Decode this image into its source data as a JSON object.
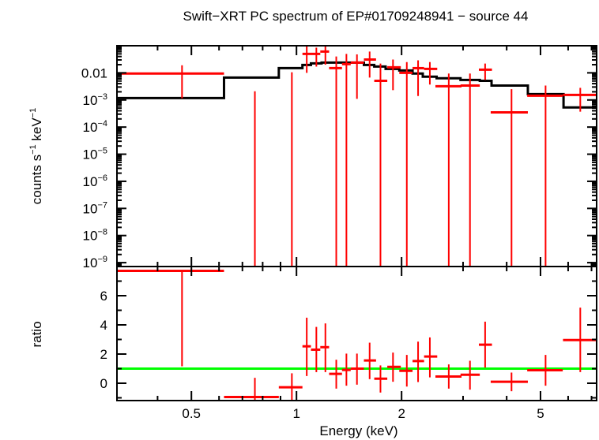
{
  "chart_data": [
    {
      "type": "scatter",
      "title": "Swift−XRT PC spectrum of EP#01709248941 − source 44",
      "xlabel": "",
      "ylabel_parts": {
        "a": "counts s",
        "a_exp": "−1",
        "b": " keV",
        "b_exp": "−1"
      },
      "xscale": "log",
      "yscale": "log",
      "xlim": [
        0.306,
        7.24
      ],
      "ylim": [
        7.2e-10,
        0.1
      ],
      "grid": false,
      "yticks": [
        {
          "value": 0.01,
          "label": "0.01"
        },
        {
          "value": 0.001,
          "base": "10",
          "exp": "−3"
        },
        {
          "value": 0.0001,
          "base": "10",
          "exp": "−4"
        },
        {
          "value": 1e-05,
          "base": "10",
          "exp": "−5"
        },
        {
          "value": 1e-06,
          "base": "10",
          "exp": "−6"
        },
        {
          "value": 1e-07,
          "base": "10",
          "exp": "−7"
        },
        {
          "value": 1e-08,
          "base": "10",
          "exp": "−8"
        },
        {
          "value": 1e-09,
          "base": "10",
          "exp": "−9"
        }
      ],
      "data_color": "#ff0000",
      "model_color": "#000000",
      "data": [
        {
          "xlo": 0.3,
          "xhi": 0.62,
          "x": 0.47,
          "y": 0.0094,
          "ylo": 0.00115,
          "yhi": 0.019
        },
        {
          "xlo": 0.62,
          "xhi": 0.89,
          "x": 0.76,
          "y": -0.0064,
          "ylo": null,
          "yhi": 0.0021
        },
        {
          "xlo": 0.89,
          "xhi": 1.04,
          "x": 0.97,
          "y": -0.0042,
          "ylo": null,
          "yhi": 0.0105
        },
        {
          "xlo": 1.04,
          "xhi": 1.1,
          "x": 1.07,
          "y": 0.05,
          "ylo": 0.01,
          "yhi": 0.1
        },
        {
          "xlo": 1.1,
          "xhi": 1.17,
          "x": 1.14,
          "y": 0.05,
          "ylo": 0.017,
          "yhi": 0.085
        },
        {
          "xlo": 1.17,
          "xhi": 1.24,
          "x": 1.21,
          "y": 0.061,
          "ylo": 0.02,
          "yhi": 0.1
        },
        {
          "xlo": 1.24,
          "xhi": 1.35,
          "x": 1.3,
          "y": 0.0149,
          "ylo": null,
          "yhi": 0.04
        },
        {
          "xlo": 1.35,
          "xhi": 1.43,
          "x": 1.39,
          "y": 0.021,
          "ylo": null,
          "yhi": 0.05
        },
        {
          "xlo": 1.43,
          "xhi": 1.56,
          "x": 1.49,
          "y": 0.024,
          "ylo": 0.0011,
          "yhi": 0.048
        },
        {
          "xlo": 1.56,
          "xhi": 1.69,
          "x": 1.62,
          "y": 0.031,
          "ylo": 0.0067,
          "yhi": 0.061
        },
        {
          "xlo": 1.67,
          "xhi": 1.82,
          "x": 1.74,
          "y": 0.0051,
          "ylo": null,
          "yhi": 0.022
        },
        {
          "xlo": 1.82,
          "xhi": 1.99,
          "x": 1.89,
          "y": 0.016,
          "ylo": 0.0023,
          "yhi": 0.031
        },
        {
          "xlo": 1.97,
          "xhi": 2.15,
          "x": 2.07,
          "y": 0.01,
          "ylo": null,
          "yhi": 0.025
        },
        {
          "xlo": 2.15,
          "xhi": 2.32,
          "x": 2.23,
          "y": 0.0149,
          "ylo": 0.0014,
          "yhi": 0.029
        },
        {
          "xlo": 2.32,
          "xhi": 2.53,
          "x": 2.41,
          "y": 0.014,
          "ylo": 0.0037,
          "yhi": 0.025
        },
        {
          "xlo": 2.5,
          "xhi": 2.97,
          "x": 2.73,
          "y": 0.0032,
          "ylo": null,
          "yhi": 0.0094
        },
        {
          "xlo": 2.95,
          "xhi": 3.35,
          "x": 3.14,
          "y": 0.0034,
          "ylo": null,
          "yhi": 0.0094
        },
        {
          "xlo": 3.33,
          "xhi": 3.63,
          "x": 3.47,
          "y": 0.0131,
          "ylo": 0.0055,
          "yhi": 0.022
        },
        {
          "xlo": 3.6,
          "xhi": 4.6,
          "x": 4.13,
          "y": 0.00035,
          "ylo": null,
          "yhi": 0.0025
        },
        {
          "xlo": 4.58,
          "xhi": 5.79,
          "x": 5.17,
          "y": 0.00143,
          "ylo": null,
          "yhi": 0.0034
        },
        {
          "xlo": 5.8,
          "xhi": 7.3,
          "x": 6.5,
          "y": 0.00154,
          "ylo": 0.00037,
          "yhi": 0.0028
        }
      ],
      "model": [
        {
          "xlo": 0.3,
          "xhi": 0.62,
          "y": 0.00117
        },
        {
          "xlo": 0.62,
          "xhi": 0.89,
          "y": 0.0067
        },
        {
          "xlo": 0.89,
          "xhi": 1.04,
          "y": 0.0149
        },
        {
          "xlo": 1.04,
          "xhi": 1.1,
          "y": 0.0195
        },
        {
          "xlo": 1.1,
          "xhi": 1.18,
          "y": 0.0223
        },
        {
          "xlo": 1.18,
          "xhi": 1.56,
          "y": 0.0239
        },
        {
          "xlo": 1.56,
          "xhi": 1.67,
          "y": 0.0195
        },
        {
          "xlo": 1.67,
          "xhi": 1.8,
          "y": 0.0171
        },
        {
          "xlo": 1.8,
          "xhi": 1.97,
          "y": 0.014
        },
        {
          "xlo": 1.97,
          "xhi": 2.15,
          "y": 0.0122
        },
        {
          "xlo": 2.15,
          "xhi": 2.3,
          "y": 0.0094
        },
        {
          "xlo": 2.3,
          "xhi": 2.52,
          "y": 0.0072
        },
        {
          "xlo": 2.52,
          "xhi": 2.95,
          "y": 0.0063
        },
        {
          "xlo": 2.95,
          "xhi": 3.35,
          "y": 0.0055
        },
        {
          "xlo": 3.35,
          "xhi": 3.62,
          "y": 0.0051
        },
        {
          "xlo": 3.62,
          "xhi": 4.6,
          "y": 0.0034
        },
        {
          "xlo": 4.6,
          "xhi": 5.82,
          "y": 0.00164
        },
        {
          "xlo": 5.82,
          "xhi": 7.24,
          "y": 0.00053
        }
      ]
    },
    {
      "type": "scatter",
      "xlabel": "Energy (keV)",
      "ylabel": "ratio",
      "xscale": "log",
      "xlim": [
        0.306,
        7.24
      ],
      "ylim": [
        -1.19,
        8.0
      ],
      "grid": false,
      "xticks": [
        {
          "value": 0.5,
          "label": "0.5"
        },
        {
          "value": 1,
          "label": "1"
        },
        {
          "value": 2,
          "label": "2"
        },
        {
          "value": 5,
          "label": "5"
        }
      ],
      "yticks": [
        {
          "value": 0,
          "label": "0"
        },
        {
          "value": 2,
          "label": "2"
        },
        {
          "value": 4,
          "label": "4"
        },
        {
          "value": 6,
          "label": "6"
        }
      ],
      "reference_line": {
        "y": 1,
        "color": "#00ff00"
      },
      "data_color": "#ff0000",
      "data": [
        {
          "x": 0.47,
          "y": 7.7,
          "ylo": 1.16,
          "yhi": 7.7
        },
        {
          "x": 0.76,
          "y": -0.95,
          "ylo": null,
          "yhi": 0.37
        },
        {
          "x": 0.97,
          "y": -0.28,
          "ylo": null,
          "yhi": 0.68
        },
        {
          "x": 1.07,
          "y": 2.53,
          "ylo": 0.49,
          "yhi": 4.49
        },
        {
          "x": 1.14,
          "y": 2.3,
          "ylo": 0.76,
          "yhi": 3.86
        },
        {
          "x": 1.21,
          "y": 2.47,
          "ylo": 0.76,
          "yhi": 4.1
        },
        {
          "x": 1.3,
          "y": 0.64,
          "ylo": -0.37,
          "yhi": 1.61
        },
        {
          "x": 1.39,
          "y": 0.91,
          "ylo": -0.17,
          "yhi": 2.03
        },
        {
          "x": 1.49,
          "y": 1.0,
          "ylo": -0.1,
          "yhi": 2.03
        },
        {
          "x": 1.62,
          "y": 1.56,
          "ylo": 0.28,
          "yhi": 2.78
        },
        {
          "x": 1.74,
          "y": 0.31,
          "ylo": -0.64,
          "yhi": 1.22
        },
        {
          "x": 1.89,
          "y": 1.12,
          "ylo": 0.1,
          "yhi": 2.1
        },
        {
          "x": 2.07,
          "y": 0.85,
          "ylo": -0.23,
          "yhi": 1.94
        },
        {
          "x": 2.23,
          "y": 1.52,
          "ylo": 0.08,
          "yhi": 2.85
        },
        {
          "x": 2.41,
          "y": 1.83,
          "ylo": 0.4,
          "yhi": 3.14
        },
        {
          "x": 2.73,
          "y": 0.46,
          "ylo": -0.37,
          "yhi": 1.29
        },
        {
          "x": 3.14,
          "y": 0.58,
          "ylo": -0.44,
          "yhi": 1.54
        },
        {
          "x": 3.47,
          "y": 2.64,
          "ylo": 1.07,
          "yhi": 4.22
        },
        {
          "x": 4.13,
          "y": 0.1,
          "ylo": -0.55,
          "yhi": 0.73
        },
        {
          "x": 5.17,
          "y": 0.89,
          "ylo": -0.17,
          "yhi": 1.94
        },
        {
          "x": 6.5,
          "y": 2.96,
          "ylo": 0.76,
          "yhi": 5.18
        }
      ]
    }
  ]
}
